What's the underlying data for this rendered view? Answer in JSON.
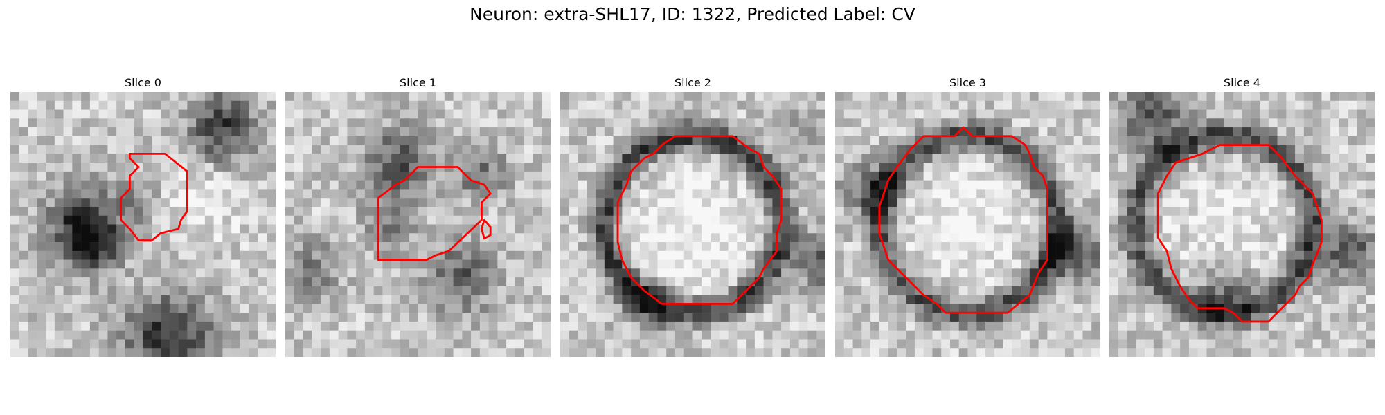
{
  "figure": {
    "suptitle": "Neuron: extra-SHL17, ID: 1322, Predicted Label: CV",
    "contour_color": "#ff0000"
  },
  "panels": [
    {
      "title": "Slice 0"
    },
    {
      "title": "Slice 1"
    },
    {
      "title": "Slice 2"
    },
    {
      "title": "Slice 3"
    },
    {
      "title": "Slice 4"
    }
  ]
}
